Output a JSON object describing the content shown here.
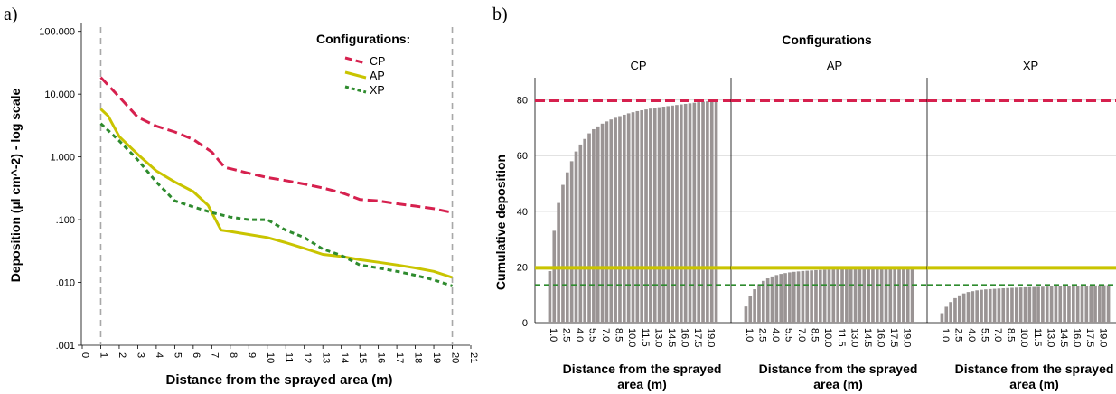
{
  "chart_data": [
    {
      "panel_label": "a)",
      "type": "line",
      "xlabel": "Distance from the sprayed area (m)",
      "ylabel": "Deposition (µl cm^-2) - log scale",
      "yscale": "log",
      "xlim": [
        0,
        21
      ],
      "ylim": [
        0.001,
        316
      ],
      "x_ticks": [
        0,
        1,
        2,
        3,
        4,
        5,
        6,
        7,
        8,
        9,
        10,
        11,
        12,
        13,
        14,
        15,
        16,
        17,
        18,
        19,
        20,
        21
      ],
      "y_ticks": [
        {
          "value": 0.001,
          "label": ".001"
        },
        {
          "value": 0.01,
          "label": ".010"
        },
        {
          "value": 0.1,
          "label": ".100"
        },
        {
          "value": 1,
          "label": "1.000"
        },
        {
          "value": 10,
          "label": "10.000"
        },
        {
          "value": 100,
          "label": "100.000"
        }
      ],
      "reference_lines_x": [
        1,
        20
      ],
      "legend": {
        "title": "Configurations:",
        "placement": "top-right"
      },
      "series": [
        {
          "name": "CP",
          "color": "#d6204e",
          "dash": "dashed",
          "x": [
            1,
            2,
            3,
            4,
            5,
            6,
            7,
            7.7,
            8,
            9,
            10,
            11,
            12,
            13,
            14,
            15,
            16,
            17,
            18,
            19,
            20
          ],
          "y": [
            18.5,
            9,
            4.3,
            3.1,
            2.5,
            1.9,
            1.2,
            0.68,
            0.65,
            0.55,
            0.47,
            0.42,
            0.37,
            0.32,
            0.27,
            0.21,
            0.2,
            0.18,
            0.165,
            0.15,
            0.13
          ]
        },
        {
          "name": "AP",
          "color": "#c9c400",
          "dash": "solid",
          "x": [
            1,
            1.4,
            2,
            3,
            4,
            5,
            6,
            6.8,
            7.5,
            8,
            9,
            10,
            11,
            12,
            13,
            14,
            15,
            16,
            17,
            18,
            19,
            20
          ],
          "y": [
            5.8,
            4.5,
            2.1,
            1.1,
            0.6,
            0.4,
            0.28,
            0.17,
            0.068,
            0.065,
            0.058,
            0.052,
            0.043,
            0.035,
            0.028,
            0.026,
            0.023,
            0.021,
            0.019,
            0.017,
            0.015,
            0.012
          ]
        },
        {
          "name": "XP",
          "color": "#2e8b2e",
          "dash": "dotted",
          "x": [
            1,
            2,
            3,
            4,
            5,
            6,
            7,
            8,
            9,
            10,
            11,
            12,
            13,
            14,
            15,
            16,
            17,
            18,
            19,
            20
          ],
          "y": [
            3.4,
            1.8,
            0.9,
            0.4,
            0.2,
            0.16,
            0.13,
            0.11,
            0.1,
            0.1,
            0.068,
            0.052,
            0.034,
            0.027,
            0.019,
            0.017,
            0.015,
            0.013,
            0.011,
            0.0088
          ]
        }
      ]
    },
    {
      "panel_label": "b)",
      "type": "bar",
      "title": "Configurations",
      "ylabel": "Cumulative deposition",
      "xlabel": "Distance from the sprayed area (m)",
      "ylim": [
        0,
        88
      ],
      "y_ticks": [
        0,
        20,
        40,
        60,
        80
      ],
      "x_tick_labels": [
        "1.0",
        "2.5",
        "4.0",
        "5.5",
        "7.0",
        "8.5",
        "10.0",
        "11.5",
        "13.0",
        "14.5",
        "16.0",
        "17.5",
        "19.0"
      ],
      "x_step": 0.5,
      "x_start": 1.0,
      "bar_color": "#9a9494",
      "facets": [
        {
          "name": "CP",
          "values": [
            18.5,
            33,
            43,
            49.5,
            54,
            58,
            61.5,
            64,
            66,
            68,
            69.5,
            70.5,
            71.5,
            72.3,
            73,
            73.6,
            74.2,
            74.7,
            75.2,
            75.6,
            76,
            76.3,
            76.6,
            76.9,
            77.2,
            77.4,
            77.6,
            77.8,
            78,
            78.2,
            78.4,
            78.6,
            78.8,
            79,
            79.2,
            79.4,
            79.5,
            79.6,
            79.7
          ]
        },
        {
          "name": "AP",
          "values": [
            5.8,
            9.5,
            12,
            13.8,
            15,
            15.9,
            16.6,
            17.1,
            17.5,
            17.8,
            18.05,
            18.25,
            18.4,
            18.55,
            18.65,
            18.75,
            18.85,
            18.92,
            18.99,
            19.05,
            19.1,
            19.15,
            19.2,
            19.24,
            19.28,
            19.32,
            19.36,
            19.4,
            19.43,
            19.46,
            19.49,
            19.52,
            19.55,
            19.58,
            19.6,
            19.62,
            19.64,
            19.66,
            19.68
          ]
        },
        {
          "name": "XP",
          "values": [
            3.4,
            5.7,
            7.4,
            8.8,
            9.8,
            10.5,
            11,
            11.3,
            11.6,
            11.8,
            11.95,
            12.05,
            12.15,
            12.25,
            12.35,
            12.42,
            12.5,
            12.57,
            12.63,
            12.69,
            12.75,
            12.8,
            12.85,
            12.9,
            12.95,
            13,
            13.04,
            13.08,
            13.12,
            13.16,
            13.2,
            13.24,
            13.28,
            13.31,
            13.34,
            13.37,
            13.4,
            13.43,
            13.46
          ]
        }
      ],
      "reference_lines_y": [
        {
          "value": 79.7,
          "color": "#d6204e",
          "style": "dashed"
        },
        {
          "value": 19.7,
          "color": "#c9c400",
          "style": "solid"
        },
        {
          "value": 13.5,
          "color": "#2e8b2e",
          "style": "dashed"
        }
      ]
    }
  ]
}
